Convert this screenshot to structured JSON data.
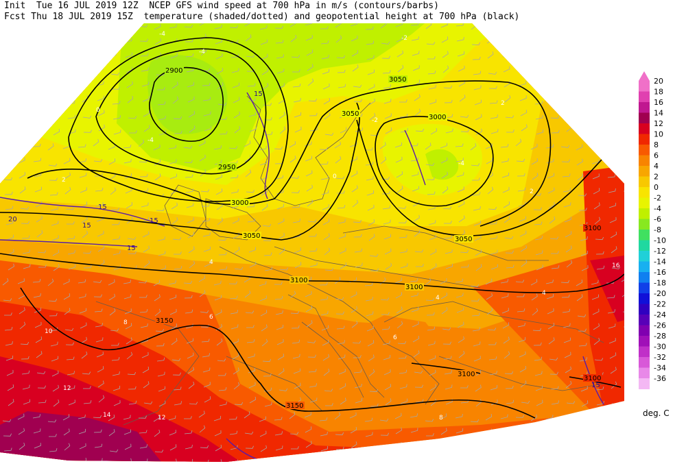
{
  "header": {
    "line1": "Init  Tue 16 JUL 2019 12Z  NCEP GFS wind speed at 700 hPa in m/s (contours/barbs)",
    "line2": "Fcst Thu 18 JUL 2019 15Z  temperature (shaded/dotted) and geopotential height at 700 hPa (black)"
  },
  "colorbar": {
    "units": "deg. C",
    "levels": [
      {
        "label": "20",
        "color": "#f070c8"
      },
      {
        "label": "18",
        "color": "#e040b0"
      },
      {
        "label": "16",
        "color": "#c01890"
      },
      {
        "label": "14",
        "color": "#a00050"
      },
      {
        "label": "12",
        "color": "#d80020"
      },
      {
        "label": "10",
        "color": "#f02800"
      },
      {
        "label": "8",
        "color": "#f85a00"
      },
      {
        "label": "6",
        "color": "#f88400"
      },
      {
        "label": "4",
        "color": "#f8a600"
      },
      {
        "label": "2",
        "color": "#f8c800"
      },
      {
        "label": "0",
        "color": "#f8e400"
      },
      {
        "label": "-2",
        "color": "#e8f400"
      },
      {
        "label": "-4",
        "color": "#c0f000"
      },
      {
        "label": "-6",
        "color": "#88e820"
      },
      {
        "label": "-8",
        "color": "#40e060"
      },
      {
        "label": "-10",
        "color": "#20d8a0"
      },
      {
        "label": "-12",
        "color": "#20d0d8"
      },
      {
        "label": "-14",
        "color": "#18b0f0"
      },
      {
        "label": "-16",
        "color": "#1080f0"
      },
      {
        "label": "-18",
        "color": "#1040e8"
      },
      {
        "label": "-20",
        "color": "#1010d8"
      },
      {
        "label": "-22",
        "color": "#3000c0"
      },
      {
        "label": "-24",
        "color": "#5800b8"
      },
      {
        "label": "-26",
        "color": "#8000b0"
      },
      {
        "label": "-28",
        "color": "#a010b8"
      },
      {
        "label": "-30",
        "color": "#c030c8"
      },
      {
        "label": "-32",
        "color": "#d858d8"
      },
      {
        "label": "-34",
        "color": "#e888e8"
      },
      {
        "label": "-36",
        "color": "#f4b8f4"
      }
    ]
  },
  "height_labels": [
    "2900",
    "2950",
    "3000",
    "3000",
    "3050",
    "3050",
    "3050",
    "3050",
    "3100",
    "3100",
    "3100",
    "3100",
    "3100",
    "3150",
    "3150"
  ],
  "wind_labels": [
    "15",
    "15",
    "15",
    "15",
    "15",
    "20",
    "15"
  ],
  "temp_labels": [
    "-4",
    "-4",
    "-4",
    "-4",
    "-2",
    "-2",
    "0",
    "0",
    "2",
    "2",
    "2",
    "4",
    "4",
    "4",
    "6",
    "6",
    "8",
    "8",
    "10",
    "10",
    "12",
    "12",
    "14",
    "16"
  ]
}
